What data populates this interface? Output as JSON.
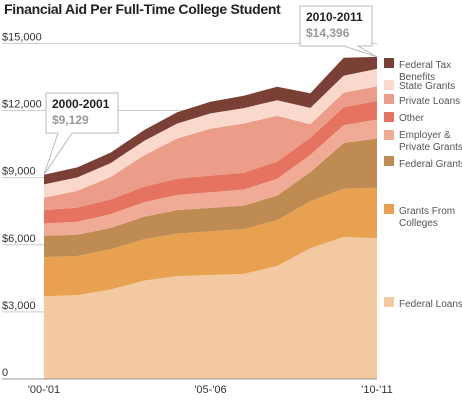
{
  "chart_data": {
    "type": "area",
    "stacked": true,
    "title": "Financial Aid Per Full-Time College Student",
    "x": [
      "2000-01",
      "2001-02",
      "2002-03",
      "2003-04",
      "2004-05",
      "2005-06",
      "2006-07",
      "2007-08",
      "2008-09",
      "2009-10",
      "2010-11"
    ],
    "x_tick_labels": [
      "'00-'01",
      "'05-'06",
      "'10-'11"
    ],
    "x_tick_indices": [
      0,
      5,
      10
    ],
    "y_ticks": [
      0,
      3000,
      6000,
      9000,
      12000,
      15000
    ],
    "y_tick_labels": [
      "0",
      "$3,000",
      "$6,000",
      "$9,000",
      "$12,000",
      "$15,000"
    ],
    "ylim": [
      0,
      15600
    ],
    "grid": true,
    "series": [
      {
        "name": "Federal Loans",
        "color": "#f3c9a1",
        "values": [
          3700,
          3750,
          4000,
          4400,
          4600,
          4650,
          4700,
          5050,
          5850,
          6350,
          6300
        ]
      },
      {
        "name": "Grants From Colleges",
        "color": "#e8a150",
        "values": [
          1750,
          1750,
          1800,
          1850,
          1900,
          1950,
          2000,
          2050,
          2100,
          2150,
          2250
        ]
      },
      {
        "name": "Federal Grants",
        "color": "#be8c52",
        "values": [
          950,
          950,
          950,
          1000,
          1050,
          1050,
          1050,
          1100,
          1300,
          2050,
          2200
        ]
      },
      {
        "name": "Employer & Private Grants",
        "color": "#f0aa95",
        "values": [
          550,
          580,
          620,
          650,
          680,
          700,
          720,
          750,
          770,
          800,
          850
        ]
      },
      {
        "name": "Other",
        "color": "#e57360",
        "values": [
          600,
          630,
          660,
          690,
          720,
          740,
          750,
          760,
          770,
          800,
          830
        ]
      },
      {
        "name": "Private Loans",
        "color": "#ec9d89",
        "values": [
          550,
          750,
          1000,
          1400,
          1800,
          2100,
          2200,
          2050,
          600,
          650,
          650
        ]
      },
      {
        "name": "State Grants",
        "color": "#fad8cc",
        "values": [
          600,
          600,
          620,
          650,
          670,
          680,
          690,
          700,
          730,
          760,
          780
        ]
      },
      {
        "name": "Federal Tax Benefits",
        "color": "#7a3f35",
        "values": [
          429,
          450,
          470,
          480,
          500,
          520,
          550,
          600,
          650,
          800,
          536
        ]
      }
    ],
    "callouts": [
      {
        "title": "2000-2001",
        "value": "$9,129",
        "index": 0
      },
      {
        "title": "2010-2011",
        "value": "$14,396",
        "index": 10
      }
    ]
  }
}
